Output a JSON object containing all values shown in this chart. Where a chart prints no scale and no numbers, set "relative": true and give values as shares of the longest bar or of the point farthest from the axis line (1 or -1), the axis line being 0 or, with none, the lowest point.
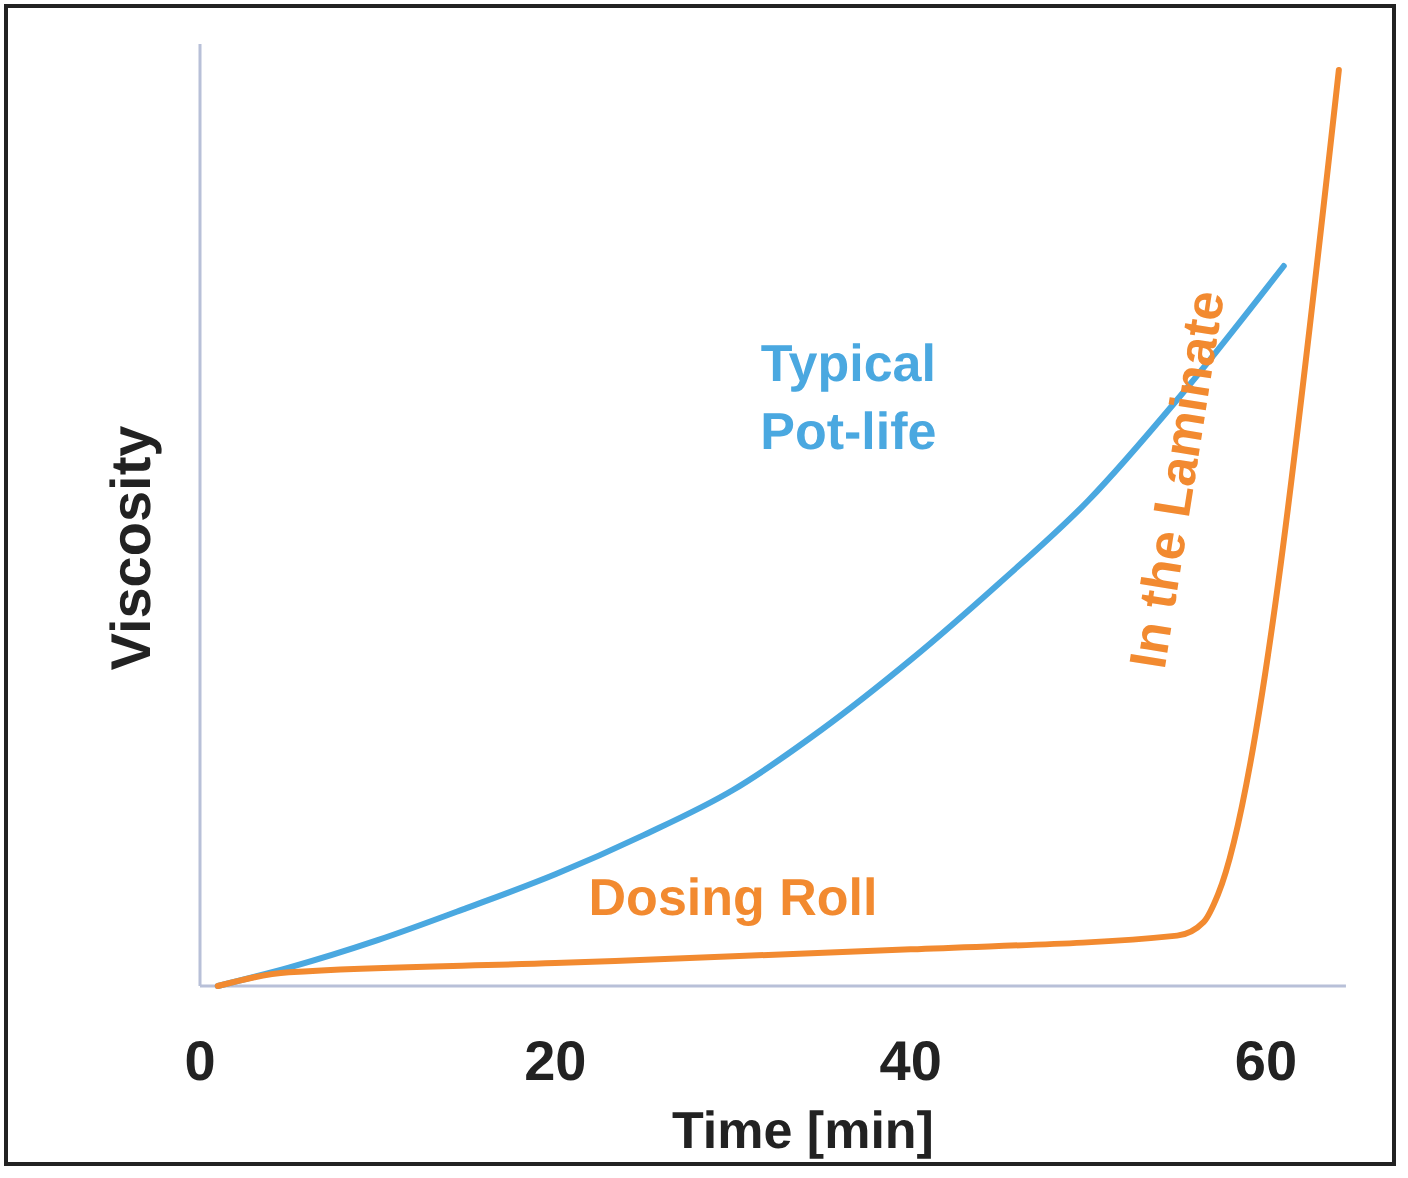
{
  "chart_data": {
    "type": "line",
    "relative": true,
    "xlabel": "Time [min]",
    "ylabel": "Viscosity",
    "xlim": [
      0,
      64.5
    ],
    "xticks": [
      0,
      20,
      40,
      60
    ],
    "grid": false,
    "marker": "none",
    "line_style": "solid",
    "series": [
      {
        "name": "Typical Pot-life",
        "color": "#4aa8e0",
        "x": [
          1,
          5,
          10,
          15,
          20,
          25,
          30,
          35,
          40,
          45,
          50,
          55,
          61
        ],
        "values": [
          0,
          0.02,
          0.05,
          0.085,
          0.122,
          0.165,
          0.214,
          0.28,
          0.356,
          0.44,
          0.53,
          0.64,
          0.786
        ]
      },
      {
        "color": "#f28a30",
        "x": [
          1,
          5,
          20,
          40,
          55,
          56.5,
          57.3,
          64.1
        ],
        "values": [
          0,
          0.015,
          0.025,
          0.04,
          0.055,
          0.07,
          0.1,
          1
        ]
      }
    ],
    "annotations": [
      {
        "text": "Dosing Roll",
        "x": 30,
        "y": 0.03
      },
      "In the Laminate"
    ]
  }
}
